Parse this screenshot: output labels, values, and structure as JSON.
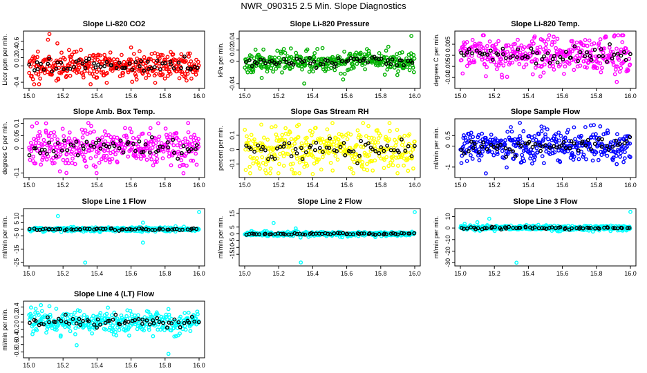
{
  "title": "NWR_090315  2.5 Min. Slope Diagnostics",
  "chart_data": [
    {
      "type": "scatter",
      "title": "Slope Li-820 CO2",
      "ylabel": "Licor ppm per min.",
      "color": "#ff0000",
      "xlim": [
        15.0,
        16.0
      ],
      "xticks": [
        "15.0",
        "15.2",
        "15.4",
        "15.6",
        "15.8",
        "16.0"
      ],
      "ylim": [
        -0.5,
        0.8
      ],
      "yticks": [
        -0.4,
        0.0,
        0.2,
        0.4,
        0.6
      ],
      "spread": 0.18,
      "seed": 11,
      "outliers": [
        [
          15.12,
          0.78
        ],
        [
          15.03,
          -0.45
        ],
        [
          15.6,
          0.45
        ]
      ]
    },
    {
      "type": "scatter",
      "title": "Slope Li-820 Pressure",
      "ylabel": "kPa per min.",
      "color": "#00b000",
      "xlim": [
        15.0,
        16.0
      ],
      "xticks": [
        "15.0",
        "15.2",
        "15.4",
        "15.6",
        "15.8",
        "16.0"
      ],
      "ylim": [
        -0.045,
        0.05
      ],
      "yticks": [
        -0.04,
        0.0,
        0.02,
        0.04
      ],
      "spread": 0.009,
      "seed": 23,
      "outliers": [
        [
          15.98,
          0.045
        ],
        [
          15.35,
          -0.04
        ],
        [
          15.1,
          -0.03
        ]
      ]
    },
    {
      "type": "scatter",
      "title": "Slope Li-820 Temp.",
      "ylabel": "degrees C per min.",
      "color": "#ff00ff",
      "xlim": [
        15.0,
        16.0
      ],
      "xticks": [
        "15.0",
        "15.2",
        "15.4",
        "15.6",
        "15.8",
        "16.0"
      ],
      "ylim": [
        -0.014,
        0.01
      ],
      "yticks": [
        -0.01,
        -0.005,
        0.0,
        0.005
      ],
      "spread": 0.004,
      "seed": 37,
      "outliers": [
        [
          15.95,
          0.009
        ],
        [
          15.92,
          -0.012
        ]
      ]
    },
    {
      "type": "scatter",
      "title": "Slope Amb. Box Temp.",
      "ylabel": "degrees C per min.",
      "color": "#ff00ff",
      "xlim": [
        15.0,
        16.0
      ],
      "xticks": [
        "15.0",
        "15.2",
        "15.4",
        "15.6",
        "15.8",
        "16.0"
      ],
      "ylim": [
        -0.11,
        0.11
      ],
      "yticks": [
        -0.1,
        0.0,
        0.05,
        0.1
      ],
      "spread": 0.04,
      "seed": 41,
      "outliers": [
        [
          15.22,
          -0.1
        ],
        [
          15.1,
          0.1
        ]
      ]
    },
    {
      "type": "scatter",
      "title": "Slope Gas Stream RH",
      "ylabel": "percent per min.",
      "color": "#ffff00",
      "xlim": [
        15.0,
        16.0
      ],
      "xticks": [
        "15.0",
        "15.2",
        "15.4",
        "15.6",
        "15.8",
        "16.0"
      ],
      "ylim": [
        -0.18,
        0.2
      ],
      "yticks": [
        -0.1,
        0.0,
        0.1
      ],
      "spread": 0.08,
      "seed": 53,
      "outliers": [
        [
          15.4,
          -0.17
        ]
      ]
    },
    {
      "type": "scatter",
      "title": "Slope Sample Flow",
      "ylabel": "ml/min per min.",
      "color": "#0000ff",
      "xlim": [
        15.0,
        16.0
      ],
      "xticks": [
        "15.0",
        "15.2",
        "15.4",
        "15.6",
        "15.8",
        "16.0"
      ],
      "ylim": [
        -1.4,
        1.2
      ],
      "yticks": [
        -1.0,
        0.0,
        0.5
      ],
      "spread": 0.35,
      "seed": 67,
      "outliers": [
        [
          15.35,
          1.1
        ],
        [
          15.15,
          -1.3
        ]
      ]
    },
    {
      "type": "scatter",
      "title": "Slope Line 1 Flow",
      "ylabel": "ml/min per min.",
      "color": "#00ffff",
      "xlim": [
        15.0,
        16.0
      ],
      "xticks": [
        "15.0",
        "15.2",
        "15.4",
        "15.6",
        "15.8",
        "16.0"
      ],
      "ylim": [
        -26,
        14
      ],
      "yticks": [
        -25,
        -15,
        -5,
        0,
        5,
        10
      ],
      "spread": 0.8,
      "seed": 71,
      "outliers": [
        [
          15.33,
          -25
        ],
        [
          16.0,
          13
        ],
        [
          15.17,
          10
        ],
        [
          15.67,
          -10
        ],
        [
          15.67,
          5
        ]
      ]
    },
    {
      "type": "scatter",
      "title": "Slope Line 2 Flow",
      "ylabel": "ml/min per min.",
      "color": "#00ffff",
      "xlim": [
        15.0,
        16.0
      ],
      "xticks": [
        "15.0",
        "15.2",
        "15.4",
        "15.6",
        "15.8",
        "16.0"
      ],
      "ylim": [
        -22,
        17
      ],
      "yticks": [
        -15,
        -10,
        -5,
        0,
        5,
        15
      ],
      "spread": 0.8,
      "seed": 83,
      "outliers": [
        [
          15.33,
          -21
        ],
        [
          16.0,
          16
        ],
        [
          15.17,
          8
        ],
        [
          15.3,
          4
        ]
      ]
    },
    {
      "type": "scatter",
      "title": "Slope Line 3 Flow",
      "ylabel": "ml/min per min.",
      "color": "#00ffff",
      "xlim": [
        15.0,
        16.0
      ],
      "xticks": [
        "15.0",
        "15.2",
        "15.4",
        "15.6",
        "15.8",
        "16.0"
      ],
      "ylim": [
        -31,
        15
      ],
      "yticks": [
        -30,
        -20,
        -10,
        0,
        10
      ],
      "spread": 1.2,
      "seed": 97,
      "outliers": [
        [
          15.33,
          -30
        ],
        [
          16.0,
          14
        ],
        [
          15.17,
          8
        ],
        [
          15.1,
          5
        ]
      ]
    },
    {
      "type": "scatter",
      "title": "Slope Line 4 (LT) Flow",
      "ylabel": "ml/min per min.",
      "color": "#00ffff",
      "xlim": [
        15.0,
        16.0
      ],
      "xticks": [
        "15.0",
        "15.2",
        "15.4",
        "15.6",
        "15.8",
        "16.0"
      ],
      "ylim": [
        -0.9,
        0.5
      ],
      "yticks": [
        -0.8,
        -0.6,
        -0.4,
        -0.2,
        0.0,
        0.2,
        0.4
      ],
      "spread": 0.15,
      "seed": 101,
      "outliers": [
        [
          15.82,
          -0.85
        ],
        [
          15.07,
          0.45
        ],
        [
          15.12,
          0.42
        ],
        [
          15.28,
          -0.62
        ]
      ]
    }
  ]
}
